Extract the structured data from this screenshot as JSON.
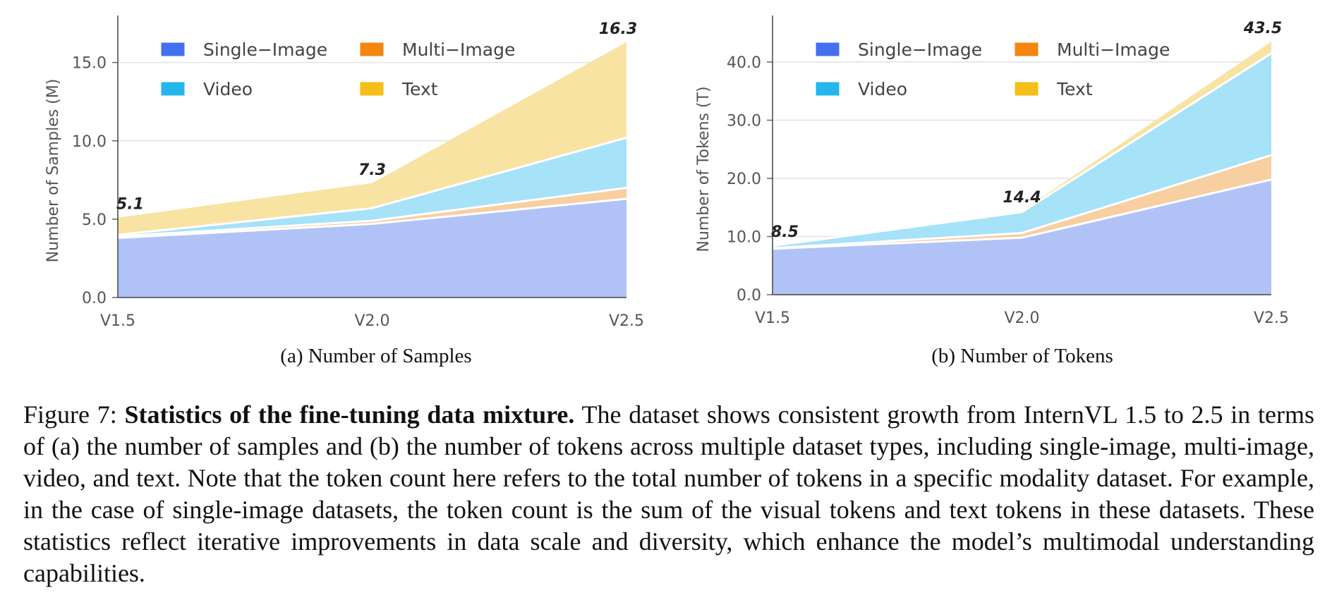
{
  "chart_data": [
    {
      "type": "area",
      "stacked": true,
      "subcaption": "(a) Number of Samples",
      "ylabel": "Number of Samples (M)",
      "xlabel": "",
      "categories": [
        "V1.5",
        "V2.0",
        "V2.5"
      ],
      "yticks": [
        "0.0",
        "5.0",
        "10.0",
        "15.0"
      ],
      "ylim": [
        0,
        18
      ],
      "grid": true,
      "legend_position": "top-left",
      "series": [
        {
          "name": "Single−Image",
          "values": [
            3.8,
            4.7,
            6.3
          ],
          "color": "#4470f0"
        },
        {
          "name": "Multi−Image",
          "values": [
            0.1,
            0.2,
            0.7
          ],
          "color": "#f2860f"
        },
        {
          "name": "Video",
          "values": [
            0.1,
            0.8,
            3.2
          ],
          "color": "#25b6ee"
        },
        {
          "name": "Text",
          "values": [
            1.1,
            1.6,
            6.1
          ],
          "color": "#f5be18"
        }
      ],
      "totals": [
        "5.1",
        "7.3",
        "16.3"
      ]
    },
    {
      "type": "area",
      "stacked": true,
      "subcaption": "(b) Number of Tokens",
      "ylabel": "Number of Tokens (T)",
      "xlabel": "",
      "categories": [
        "V1.5",
        "V2.0",
        "V2.5"
      ],
      "yticks": [
        "0.0",
        "10.0",
        "20.0",
        "30.0",
        "40.0"
      ],
      "ylim": [
        0,
        48
      ],
      "grid": true,
      "legend_position": "top-left",
      "series": [
        {
          "name": "Single−Image",
          "values": [
            7.9,
            9.8,
            19.8
          ],
          "color": "#4470f0"
        },
        {
          "name": "Multi−Image",
          "values": [
            0.1,
            0.8,
            4.2
          ],
          "color": "#f2860f"
        },
        {
          "name": "Video",
          "values": [
            0.4,
            3.6,
            17.5
          ],
          "color": "#25b6ee"
        },
        {
          "name": "Text",
          "values": [
            0.1,
            0.2,
            2.0
          ],
          "color": "#f5be18"
        }
      ],
      "totals": [
        "8.5",
        "14.4",
        "43.5"
      ]
    }
  ],
  "caption": {
    "prefix": "Figure 7: ",
    "bold": "Statistics of the fine-tuning data mixture.",
    "text": " The dataset shows consistent growth from InternVL 1.5 to 2.5 in terms of (a) the number of samples and (b) the number of tokens across multiple dataset types, including single-image, multi-image, video, and text. Note that the token count here refers to the total number of tokens in a specific modality dataset. For example, in the case of single-image datasets, the token count is the sum of the visual tokens and text tokens in these datasets. These statistics reflect iterative improvements in data scale and diversity, which enhance the model’s multimodal understanding capabilities."
  }
}
